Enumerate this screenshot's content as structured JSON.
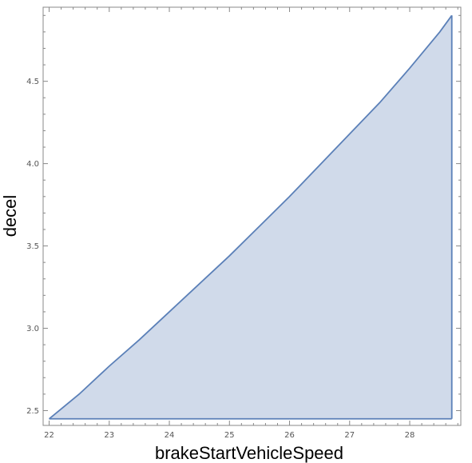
{
  "chart_data": {
    "type": "area",
    "title": "",
    "xlabel": "brakeStartVehicleSpeed",
    "ylabel": "decel",
    "xlim": [
      21.9,
      28.85
    ],
    "ylim": [
      2.41,
      4.95
    ],
    "x_ticks": [
      "22",
      "23",
      "24",
      "25",
      "26",
      "27",
      "28"
    ],
    "y_ticks": [
      "2.5",
      "3.0",
      "3.5",
      "4.0",
      "4.5"
    ],
    "grid": false,
    "series": [
      {
        "region": "filled",
        "baseline": 2.45,
        "right_boundary_x": 28.7,
        "x": [
          22.0,
          22.5,
          23.0,
          23.5,
          24.0,
          24.5,
          25.0,
          25.5,
          26.0,
          26.5,
          27.0,
          27.5,
          28.0,
          28.5,
          28.7
        ],
        "y": [
          2.45,
          2.6,
          2.77,
          2.93,
          3.1,
          3.27,
          3.44,
          3.62,
          3.8,
          3.99,
          4.18,
          4.37,
          4.58,
          4.8,
          4.9
        ]
      }
    ],
    "colors": {
      "fill": "#d0daea",
      "stroke": "#5b80b8",
      "frame": "#888888"
    }
  }
}
